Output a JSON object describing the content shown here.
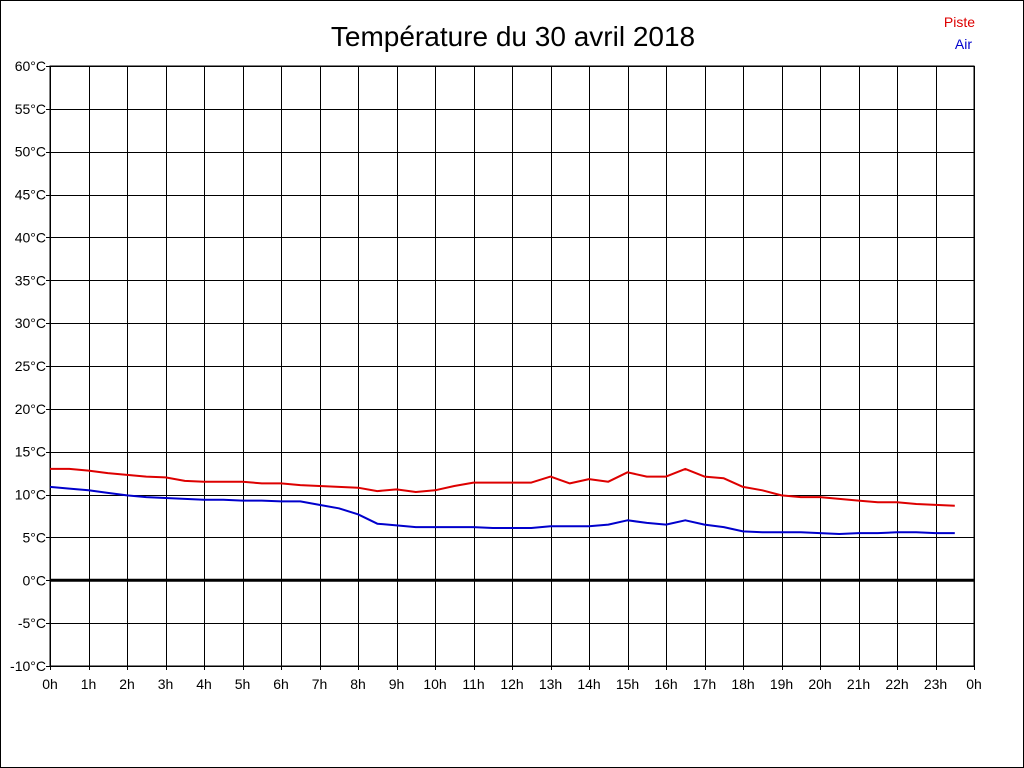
{
  "chart_data": {
    "type": "line",
    "title": "Température du 30 avril 2018",
    "xlabel": "",
    "ylabel": "",
    "ylim": [
      -10,
      60
    ],
    "xlim": [
      0,
      24
    ],
    "grid": true,
    "legend_position": "top-right",
    "y_ticks": [
      "60°C",
      "55°C",
      "50°C",
      "45°C",
      "40°C",
      "35°C",
      "30°C",
      "25°C",
      "20°C",
      "15°C",
      "10°C",
      "5°C",
      "0°C",
      "-5°C",
      "-10°C"
    ],
    "x_ticks": [
      "0h",
      "1h",
      "2h",
      "3h",
      "4h",
      "5h",
      "6h",
      "7h",
      "8h",
      "9h",
      "10h",
      "11h",
      "12h",
      "13h",
      "14h",
      "15h",
      "16h",
      "17h",
      "18h",
      "19h",
      "20h",
      "21h",
      "22h",
      "23h",
      "0h"
    ],
    "x": [
      0,
      0.5,
      1,
      1.5,
      2,
      2.5,
      3,
      3.5,
      4,
      4.5,
      5,
      5.5,
      6,
      6.5,
      7,
      7.5,
      8,
      8.5,
      9,
      9.5,
      10,
      10.5,
      11,
      11.5,
      12,
      12.5,
      13,
      13.5,
      14,
      14.5,
      15,
      15.5,
      16,
      16.5,
      17,
      17.5,
      18,
      18.5,
      19,
      19.5,
      20,
      20.5,
      21,
      21.5,
      22,
      22.5,
      23,
      23.5
    ],
    "series": [
      {
        "name": "Piste",
        "color": "#dd0000",
        "values": [
          13.0,
          13.0,
          12.8,
          12.5,
          12.3,
          12.1,
          12.0,
          11.6,
          11.5,
          11.5,
          11.5,
          11.3,
          11.3,
          11.1,
          11.0,
          10.9,
          10.8,
          10.4,
          10.6,
          10.3,
          10.5,
          11.0,
          11.4,
          11.4,
          11.4,
          11.4,
          12.1,
          11.3,
          11.8,
          11.5,
          12.6,
          12.1,
          12.1,
          13.0,
          12.1,
          11.9,
          10.9,
          10.5,
          9.9,
          9.7,
          9.7,
          9.5,
          9.3,
          9.1,
          9.1,
          8.9,
          8.8,
          8.7
        ]
      },
      {
        "name": "Air",
        "color": "#0000cc",
        "values": [
          10.9,
          10.7,
          10.5,
          10.2,
          9.9,
          9.7,
          9.6,
          9.5,
          9.4,
          9.4,
          9.3,
          9.3,
          9.2,
          9.2,
          8.8,
          8.4,
          7.7,
          6.6,
          6.4,
          6.2,
          6.2,
          6.2,
          6.2,
          6.1,
          6.1,
          6.1,
          6.3,
          6.3,
          6.3,
          6.5,
          7.0,
          6.7,
          6.5,
          7.0,
          6.5,
          6.2,
          5.7,
          5.6,
          5.6,
          5.6,
          5.5,
          5.4,
          5.5,
          5.5,
          5.6,
          5.6,
          5.5,
          5.5
        ]
      }
    ]
  }
}
